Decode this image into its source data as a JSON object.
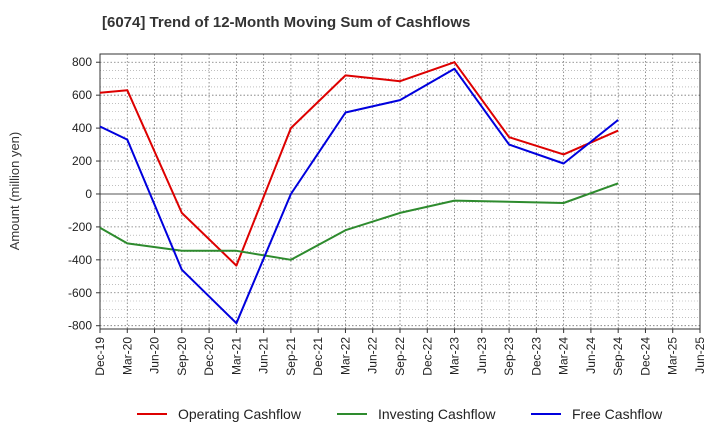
{
  "chart_data": {
    "type": "line",
    "title": "[6074]  Trend of 12-Month Moving Sum of Cashflows",
    "xlabel": "",
    "ylabel": "Amount (million yen)",
    "ylim": [
      -820,
      850
    ],
    "yticks": [
      800,
      600,
      400,
      200,
      0,
      -200,
      -400,
      -600,
      -800
    ],
    "ytick_labels": [
      "800",
      "600",
      "400",
      "200",
      "0",
      "-200",
      "-400",
      "-600",
      "-800"
    ],
    "categories": [
      "Dec-19",
      "Mar-20",
      "Jun-20",
      "Sep-20",
      "Dec-20",
      "Mar-21",
      "Jun-21",
      "Sep-21",
      "Dec-21",
      "Mar-22",
      "Jun-22",
      "Sep-22",
      "Dec-22",
      "Mar-23",
      "Jun-23",
      "Sep-23",
      "Dec-23",
      "Mar-24",
      "Jun-24",
      "Sep-24",
      "Dec-24",
      "Mar-25",
      "Jun-25"
    ],
    "grid": true,
    "legend_position": "bottom",
    "series": [
      {
        "name": "Operating Cashflow",
        "color": "#dd0000",
        "values": [
          615,
          630,
          null,
          -115,
          null,
          -435,
          null,
          400,
          null,
          720,
          null,
          685,
          null,
          800,
          null,
          345,
          null,
          240,
          null,
          385,
          null,
          null,
          null
        ]
      },
      {
        "name": "Investing Cashflow",
        "color": "#2e8b2e",
        "values": [
          -205,
          -300,
          null,
          -345,
          null,
          -345,
          null,
          -400,
          null,
          -220,
          null,
          -115,
          null,
          -40,
          null,
          null,
          null,
          -55,
          null,
          65,
          null,
          null,
          null
        ]
      },
      {
        "name": "Free Cashflow",
        "color": "#0000dd",
        "values": [
          410,
          330,
          null,
          -460,
          null,
          -785,
          null,
          0,
          null,
          495,
          null,
          570,
          null,
          760,
          null,
          300,
          null,
          185,
          null,
          450,
          null,
          null,
          null
        ]
      }
    ]
  }
}
